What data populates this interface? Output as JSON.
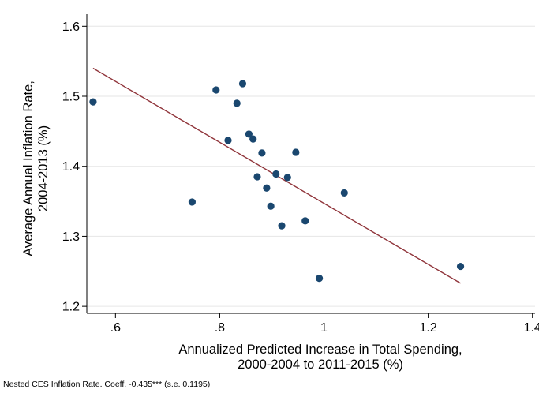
{
  "chart_data": {
    "type": "scatter",
    "xlabel_lines": [
      "Annualized Predicted Increase in Total Spending,",
      "2000-2004 to 2011-2015 (%)"
    ],
    "ylabel_lines": [
      "Average Annual Inflation Rate,",
      "2004-2013 (%)"
    ],
    "xlim": [
      0.545,
      1.405
    ],
    "ylim": [
      1.19,
      1.615
    ],
    "x_ticks": [
      0.6,
      0.8,
      1.0,
      1.2,
      1.4
    ],
    "x_tick_labels": [
      ".6",
      ".8",
      "1",
      "1.2",
      "1.4"
    ],
    "y_ticks": [
      1.2,
      1.3,
      1.4,
      1.5,
      1.6
    ],
    "y_tick_labels": [
      "1.2",
      "1.3",
      "1.4",
      "1.5",
      "1.6"
    ],
    "grid": "horizontal",
    "points": [
      {
        "x": 0.557,
        "y": 1.492
      },
      {
        "x": 0.747,
        "y": 1.349
      },
      {
        "x": 0.793,
        "y": 1.509
      },
      {
        "x": 0.816,
        "y": 1.437
      },
      {
        "x": 0.833,
        "y": 1.49
      },
      {
        "x": 0.844,
        "y": 1.518
      },
      {
        "x": 0.856,
        "y": 1.446
      },
      {
        "x": 0.864,
        "y": 1.439
      },
      {
        "x": 0.872,
        "y": 1.385
      },
      {
        "x": 0.881,
        "y": 1.419
      },
      {
        "x": 0.89,
        "y": 1.369
      },
      {
        "x": 0.898,
        "y": 1.343
      },
      {
        "x": 0.908,
        "y": 1.389
      },
      {
        "x": 0.919,
        "y": 1.315
      },
      {
        "x": 0.93,
        "y": 1.384
      },
      {
        "x": 0.946,
        "y": 1.42
      },
      {
        "x": 0.964,
        "y": 1.322
      },
      {
        "x": 0.991,
        "y": 1.24
      },
      {
        "x": 1.039,
        "y": 1.362
      },
      {
        "x": 1.262,
        "y": 1.257
      }
    ],
    "fit_line": {
      "x": [
        0.557,
        1.262
      ],
      "y": [
        1.54,
        1.233
      ]
    },
    "colors": {
      "marker": "#1a476f",
      "fit_line": "#90353b",
      "grid": "#e6e6e6",
      "axis": "#000000"
    }
  },
  "footnote": "Nested CES Inflation Rate. Coeff. -0.435*** (s.e. 0.1195)"
}
